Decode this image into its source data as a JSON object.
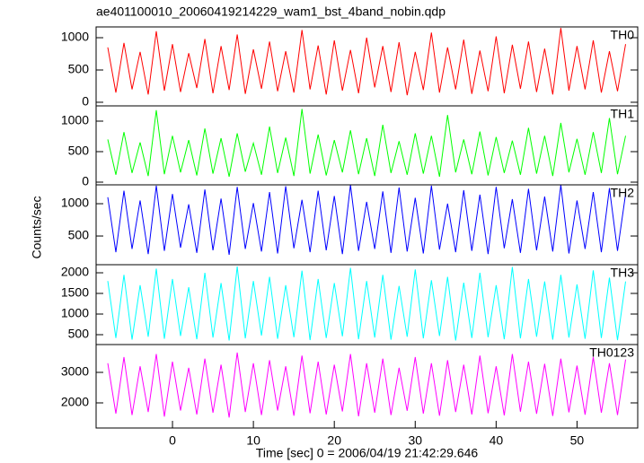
{
  "chart_data": [
    {
      "type": "line",
      "title": "ae401100010_20060419214229_wam1_bst_4band_nobin.qdp",
      "x": [
        -8,
        -7,
        -6,
        -5,
        -4,
        -3,
        -2,
        -1,
        0,
        1,
        2,
        3,
        4,
        5,
        6,
        7,
        8,
        9,
        10,
        11,
        12,
        13,
        14,
        15,
        16,
        17,
        18,
        19,
        20,
        21,
        22,
        23,
        24,
        25,
        26,
        27,
        28,
        29,
        30,
        31,
        32,
        33,
        34,
        35,
        36,
        37,
        38,
        39,
        40,
        41,
        42,
        43,
        44,
        45,
        46,
        47,
        48,
        49,
        50,
        51,
        52,
        53,
        54,
        55,
        56
      ],
      "series": [
        {
          "name": "TH0",
          "color": "#ff0000",
          "values": [
            850,
            150,
            920,
            200,
            780,
            120,
            1100,
            180,
            900,
            160,
            760,
            220,
            980,
            140,
            870,
            190,
            1050,
            130,
            820,
            210,
            940,
            170,
            790,
            150,
            1120,
            200,
            880,
            120,
            960,
            180,
            810,
            140,
            1000,
            230,
            870,
            160,
            930,
            110,
            780,
            190,
            1080,
            150,
            850,
            200,
            970,
            130,
            800,
            170,
            1020,
            140,
            890,
            210,
            940,
            160,
            830,
            120,
            1150,
            180,
            870,
            200,
            960,
            150,
            790,
            170,
            900
          ]
        }
      ],
      "xlim": [
        -9.44,
        57.5
      ],
      "ylim": [
        -56,
        1167
      ],
      "yticks": [
        0,
        500,
        1000
      ]
    },
    {
      "type": "line",
      "x": [
        -8,
        -7,
        -6,
        -5,
        -4,
        -3,
        -2,
        -1,
        0,
        1,
        2,
        3,
        4,
        5,
        6,
        7,
        8,
        9,
        10,
        11,
        12,
        13,
        14,
        15,
        16,
        17,
        18,
        19,
        20,
        21,
        22,
        23,
        24,
        25,
        26,
        27,
        28,
        29,
        30,
        31,
        32,
        33,
        34,
        35,
        36,
        37,
        38,
        39,
        40,
        41,
        42,
        43,
        44,
        45,
        46,
        47,
        48,
        49,
        50,
        51,
        52,
        53,
        54,
        55,
        56
      ],
      "series": [
        {
          "name": "TH1",
          "color": "#00ff00",
          "values": [
            700,
            120,
            820,
            150,
            650,
            100,
            1180,
            130,
            760,
            160,
            690,
            110,
            880,
            140,
            720,
            90,
            800,
            170,
            640,
            120,
            910,
            150,
            730,
            100,
            1200,
            140,
            780,
            110,
            690,
            160,
            850,
            130,
            720,
            100,
            940,
            150,
            670,
            120,
            800,
            140,
            760,
            90,
            1100,
            160,
            700,
            130,
            830,
            110,
            740,
            150,
            680,
            120,
            890,
            140,
            760,
            100,
            970,
            160,
            710,
            120,
            820,
            150,
            1050,
            130,
            760
          ]
        }
      ],
      "xlim": [
        -9.44,
        57.5
      ],
      "ylim": [
        -44,
        1250
      ],
      "yticks": [
        0,
        500,
        1000
      ]
    },
    {
      "type": "line",
      "ylabel": "Counts/sec",
      "x": [
        -8,
        -7,
        -6,
        -5,
        -4,
        -3,
        -2,
        -1,
        0,
        1,
        2,
        3,
        4,
        5,
        6,
        7,
        8,
        9,
        10,
        11,
        12,
        13,
        14,
        15,
        16,
        17,
        18,
        19,
        20,
        21,
        22,
        23,
        24,
        25,
        26,
        27,
        28,
        29,
        30,
        31,
        32,
        33,
        34,
        35,
        36,
        37,
        38,
        39,
        40,
        41,
        42,
        43,
        44,
        45,
        46,
        47,
        48,
        49,
        50,
        51,
        52,
        53,
        54,
        55,
        56
      ],
      "series": [
        {
          "name": "TH2",
          "color": "#0000ff",
          "values": [
            1100,
            250,
            1200,
            300,
            1050,
            220,
            1280,
            270,
            1150,
            320,
            990,
            240,
            1220,
            280,
            1080,
            210,
            1260,
            300,
            1010,
            260,
            1180,
            230,
            1270,
            310,
            1060,
            250,
            1200,
            280,
            1120,
            220,
            1290,
            270,
            1030,
            300,
            1190,
            240,
            1250,
            260,
            1090,
            230,
            1280,
            290,
            1000,
            250,
            1210,
            270,
            1140,
            220,
            1260,
            310,
            1070,
            240,
            1230,
            280,
            1110,
            260,
            1290,
            230,
            1050,
            300,
            1180,
            250,
            1240,
            270,
            1150
          ]
        }
      ],
      "xlim": [
        -9.44,
        57.5
      ],
      "ylim": [
        56,
        1292
      ],
      "yticks": [
        500,
        1000
      ]
    },
    {
      "type": "line",
      "x": [
        -8,
        -7,
        -6,
        -5,
        -4,
        -3,
        -2,
        -1,
        0,
        1,
        2,
        3,
        4,
        5,
        6,
        7,
        8,
        9,
        10,
        11,
        12,
        13,
        14,
        15,
        16,
        17,
        18,
        19,
        20,
        21,
        22,
        23,
        24,
        25,
        26,
        27,
        28,
        29,
        30,
        31,
        32,
        33,
        34,
        35,
        36,
        37,
        38,
        39,
        40,
        41,
        42,
        43,
        44,
        45,
        46,
        47,
        48,
        49,
        50,
        51,
        52,
        53,
        54,
        55,
        56
      ],
      "series": [
        {
          "name": "TH3",
          "color": "#00ffff",
          "values": [
            1800,
            420,
            1950,
            380,
            1700,
            450,
            2100,
            400,
            1850,
            470,
            1650,
            390,
            2000,
            430,
            1750,
            360,
            2150,
            410,
            1800,
            480,
            1900,
            400,
            1700,
            440,
            2050,
            370,
            1850,
            420,
            1750,
            460,
            2120,
            390,
            1800,
            430,
            1950,
            380,
            1680,
            450,
            2080,
            410,
            1820,
            470,
            1900,
            360,
            1760,
            420,
            2000,
            440,
            1700,
            390,
            2140,
            410,
            1850,
            450,
            1790,
            380,
            1950,
            430,
            1720,
            400,
            2060,
            420,
            1880,
            370,
            1790
          ]
        }
      ],
      "xlim": [
        -9.44,
        57.5
      ],
      "ylim": [
        261,
        2196
      ],
      "yticks": [
        500,
        1000,
        1500,
        2000
      ]
    },
    {
      "type": "line",
      "xlabel": "Time [sec] 0 = 2006/04/19 21:42:29.646",
      "x": [
        -8,
        -7,
        -6,
        -5,
        -4,
        -3,
        -2,
        -1,
        0,
        1,
        2,
        3,
        4,
        5,
        6,
        7,
        8,
        9,
        10,
        11,
        12,
        13,
        14,
        15,
        16,
        17,
        18,
        19,
        20,
        21,
        22,
        23,
        24,
        25,
        26,
        27,
        28,
        29,
        30,
        31,
        32,
        33,
        34,
        35,
        36,
        37,
        38,
        39,
        40,
        41,
        42,
        43,
        44,
        45,
        46,
        47,
        48,
        49,
        50,
        51,
        52,
        53,
        54,
        55,
        56
      ],
      "series": [
        {
          "name": "TH0123",
          "color": "#ff00ff",
          "values": [
            3300,
            1650,
            3500,
            1600,
            3200,
            1700,
            3600,
            1550,
            3350,
            1750,
            3150,
            1620,
            3450,
            1680,
            3250,
            1520,
            3650,
            1700,
            3300,
            1600,
            3400,
            1750,
            3200,
            1580,
            3550,
            1660,
            3350,
            1620,
            3250,
            1720,
            3600,
            1560,
            3300,
            1680,
            3450,
            1600,
            3150,
            1740,
            3500,
            1650,
            3300,
            1580,
            3400,
            1700,
            3250,
            1620,
            3550,
            1660,
            3200,
            1590,
            3600,
            1710,
            3350,
            1640,
            3280,
            1570,
            3450,
            1690,
            3220,
            1610,
            3500,
            1680,
            3300,
            1600,
            3420
          ]
        }
      ],
      "xlim": [
        -9.44,
        57.5
      ],
      "ylim": [
        1176,
        3912
      ],
      "yticks": [
        2000,
        3000
      ],
      "xticks": [
        0,
        10,
        20,
        30,
        40,
        50
      ]
    }
  ]
}
